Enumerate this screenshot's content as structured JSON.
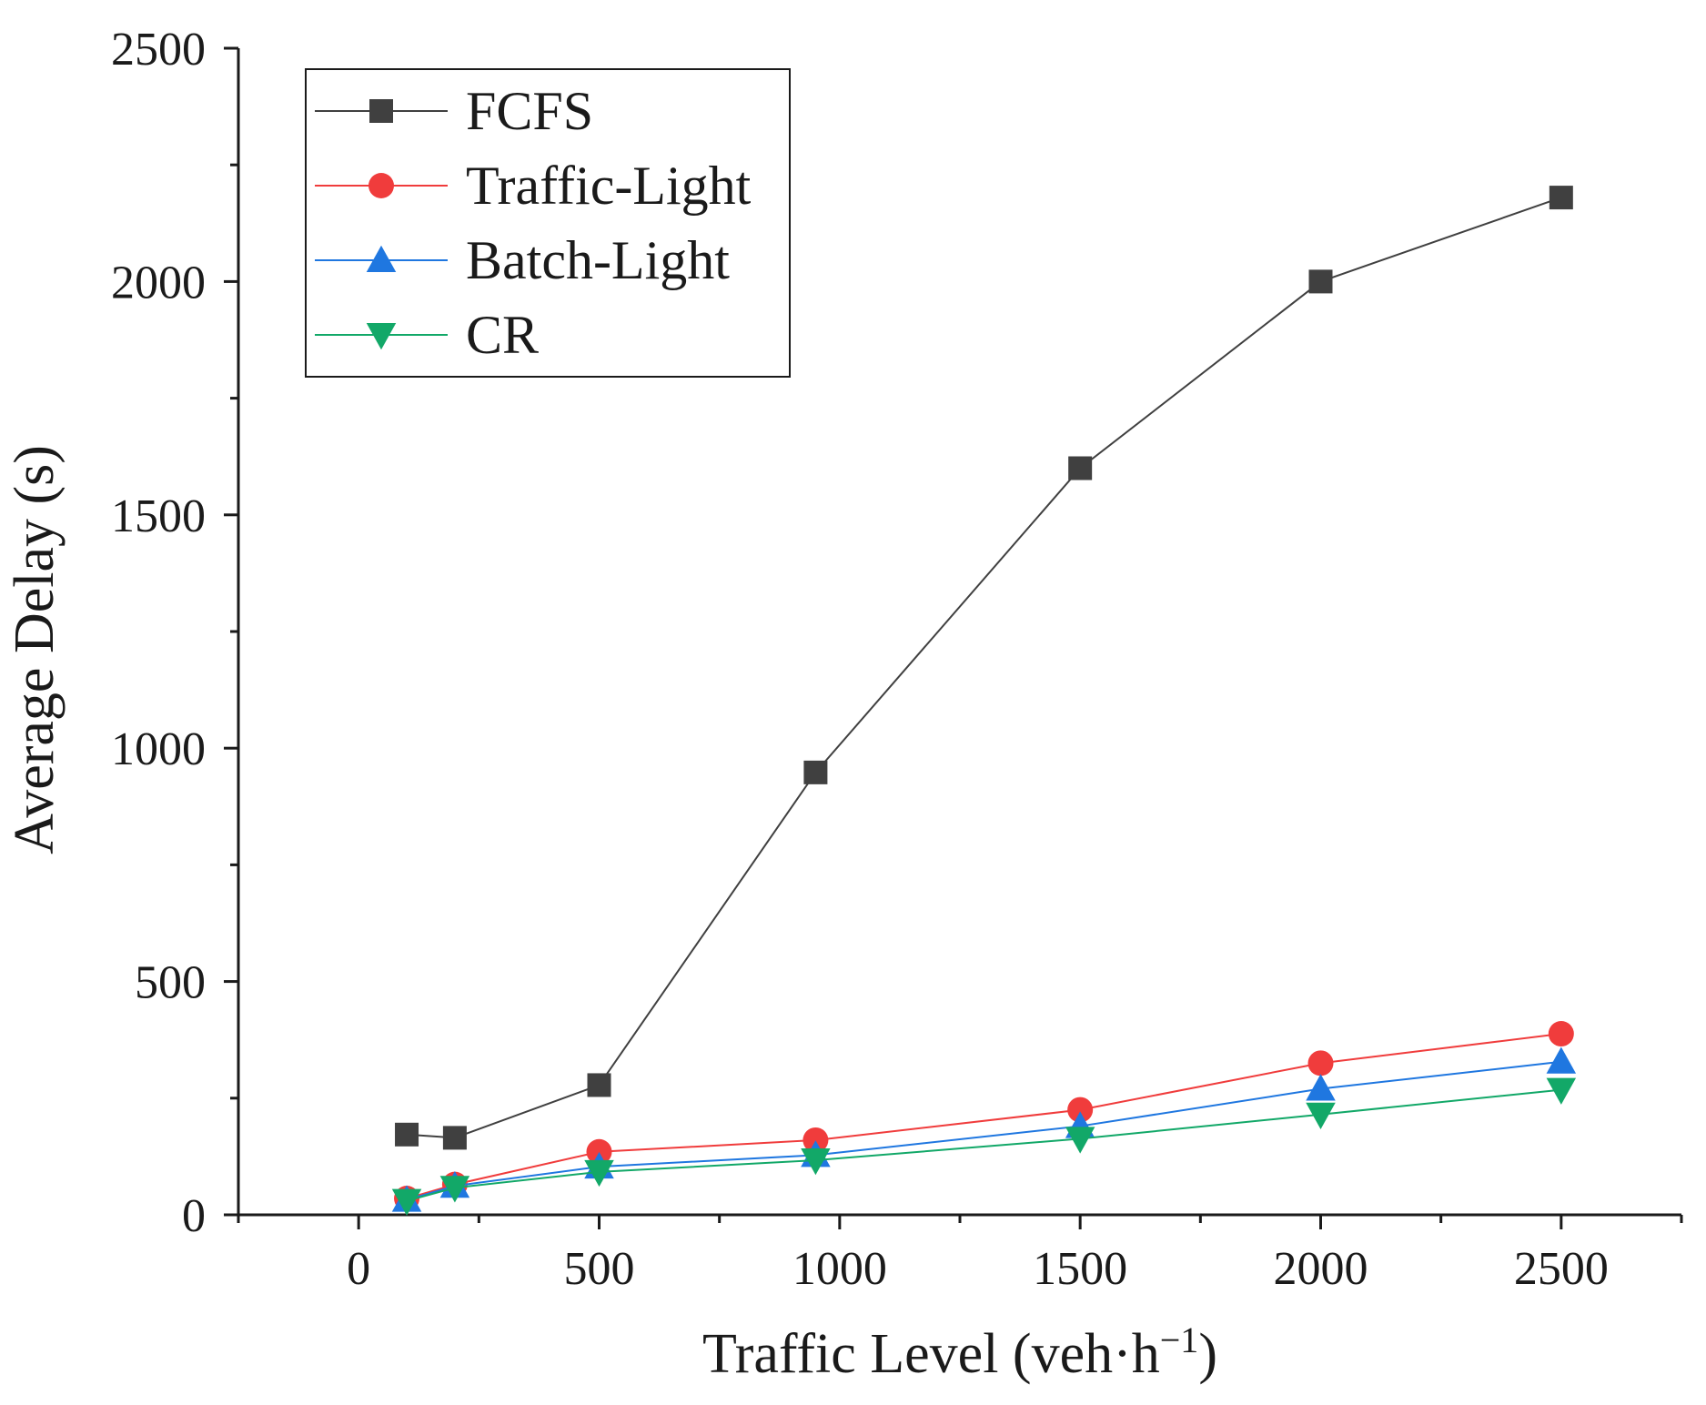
{
  "chart_data": {
    "type": "line",
    "xlabel": "Traffic Level (veh·h",
    "xlabel_superscript": "−1",
    "xlabel_suffix": ")",
    "ylabel": "Average Delay (s)",
    "xlim": [
      -250,
      2750
    ],
    "ylim": [
      0,
      2500
    ],
    "xticks": [
      0,
      500,
      1000,
      1500,
      2000,
      2500
    ],
    "yticks": [
      0,
      500,
      1000,
      1500,
      2000,
      2500
    ],
    "grid": false,
    "legend_position": "top-left",
    "series": [
      {
        "name": "FCFS",
        "color": "#404040",
        "marker": "square",
        "x": [
          100,
          200,
          500,
          950,
          1500,
          2000,
          2500
        ],
        "y": [
          172,
          165,
          278,
          948,
          1600,
          2000,
          2180
        ]
      },
      {
        "name": "Traffic-Light",
        "color": "#f03c3c",
        "marker": "circle",
        "x": [
          100,
          200,
          500,
          950,
          1500,
          2000,
          2500
        ],
        "y": [
          35,
          65,
          135,
          160,
          225,
          325,
          388
        ]
      },
      {
        "name": "Batch-Light",
        "color": "#1f77e0",
        "marker": "triangle-up",
        "x": [
          100,
          200,
          500,
          950,
          1500,
          2000,
          2500
        ],
        "y": [
          32,
          62,
          103,
          128,
          190,
          270,
          328
        ]
      },
      {
        "name": "CR",
        "color": "#12a868",
        "marker": "triangle-down",
        "x": [
          100,
          200,
          500,
          950,
          1500,
          2000,
          2500
        ],
        "y": [
          30,
          58,
          92,
          117,
          163,
          215,
          268
        ]
      }
    ]
  }
}
